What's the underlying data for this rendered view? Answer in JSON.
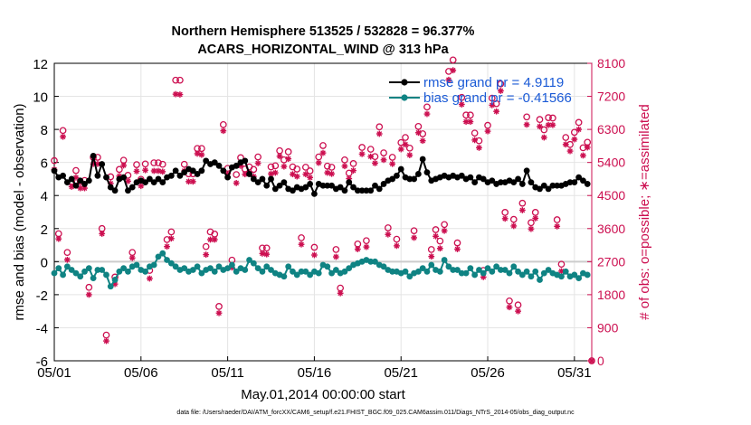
{
  "chart_data": {
    "type": "line",
    "title": "Northern Hemisphere 513525 / 532828 = 96.377%",
    "subtitle": "ACARS_HORIZONTAL_WIND @ 313 hPa",
    "xlabel": "May.01,2014 00:00:00 start",
    "ylabel": "rmse and bias (model - observation)",
    "y2label": "# of obs: o=possible; ∗=assimilated",
    "x_tick_labels": [
      "05/01",
      "05/06",
      "05/11",
      "05/16",
      "05/21",
      "05/26",
      "05/31"
    ],
    "x_ticks": [
      1,
      6,
      11,
      16,
      21,
      26,
      31
    ],
    "xlim": [
      1,
      32
    ],
    "ylim": [
      -6,
      12
    ],
    "y_ticks": [
      -6,
      -4,
      -2,
      0,
      2,
      4,
      6,
      8,
      10,
      12
    ],
    "y2lim": [
      0,
      8100
    ],
    "y2_ticks": [
      0,
      900,
      1800,
      2700,
      3600,
      4500,
      5400,
      6300,
      7200,
      8100
    ],
    "grid": true,
    "legend_position": "top-right",
    "legend": [
      "rmse grand pr = 4.9119",
      "bias grand pr = -0.41566"
    ],
    "colors": {
      "rmse": "#000000",
      "bias": "#0f8383",
      "obs": "#cc0f50",
      "legend_text": "#1a5ad6",
      "zero_line": "#cccccc"
    },
    "series": [
      {
        "name": "rmse grand pr = 4.9119",
        "axis": "left",
        "color": "#000000",
        "x": [
          1.0,
          1.25,
          1.5,
          1.75,
          2.0,
          2.25,
          2.5,
          2.75,
          3.0,
          3.25,
          3.5,
          3.75,
          4.0,
          4.25,
          4.5,
          4.75,
          5.0,
          5.25,
          5.5,
          5.75,
          6.0,
          6.25,
          6.5,
          6.75,
          7.0,
          7.25,
          7.5,
          7.75,
          8.0,
          8.25,
          8.5,
          8.75,
          9.0,
          9.25,
          9.5,
          9.75,
          10.0,
          10.25,
          10.5,
          10.75,
          11.0,
          11.25,
          11.5,
          11.75,
          12.0,
          12.25,
          12.5,
          12.75,
          13.0,
          13.25,
          13.5,
          13.75,
          14.0,
          14.25,
          14.5,
          14.75,
          15.0,
          15.25,
          15.5,
          15.75,
          16.0,
          16.25,
          16.5,
          16.75,
          17.0,
          17.25,
          17.5,
          17.75,
          18.0,
          18.25,
          18.5,
          18.75,
          19.0,
          19.25,
          19.5,
          19.75,
          20.0,
          20.25,
          20.5,
          20.75,
          21.0,
          21.25,
          21.5,
          21.75,
          22.0,
          22.25,
          22.5,
          22.75,
          23.0,
          23.25,
          23.5,
          23.75,
          24.0,
          24.25,
          24.5,
          24.75,
          25.0,
          25.25,
          25.5,
          25.75,
          26.0,
          26.25,
          26.5,
          26.75,
          27.0,
          27.25,
          27.5,
          27.75,
          28.0,
          28.25,
          28.5,
          28.75,
          29.0,
          29.25,
          29.5,
          29.75,
          30.0,
          30.25,
          30.5,
          30.75,
          31.0,
          31.25,
          31.5,
          31.75
        ],
        "values": [
          5.5,
          5.1,
          5.2,
          4.8,
          5.0,
          4.6,
          4.9,
          4.7,
          4.9,
          6.4,
          5.2,
          5.9,
          5.1,
          4.5,
          4.3,
          5.0,
          5.1,
          4.3,
          4.5,
          4.8,
          4.9,
          4.8,
          5.0,
          4.8,
          5.0,
          4.8,
          5.1,
          5.2,
          5.5,
          5.2,
          5.4,
          5.6,
          5.5,
          5.3,
          5.5,
          6.1,
          5.9,
          6.0,
          5.8,
          5.5,
          5.1,
          5.7,
          5.8,
          6.0,
          6.1,
          5.3,
          5.0,
          4.8,
          5.0,
          4.6,
          5.0,
          4.4,
          4.6,
          4.8,
          4.4,
          4.3,
          4.5,
          4.4,
          4.5,
          4.7,
          4.1,
          4.7,
          4.6,
          4.6,
          4.6,
          4.4,
          4.5,
          4.3,
          4.8,
          4.5,
          4.3,
          4.3,
          4.3,
          4.3,
          4.6,
          4.4,
          4.7,
          4.9,
          5.0,
          5.2,
          5.6,
          5.1,
          5.0,
          5.0,
          5.3,
          6.2,
          5.4,
          4.9,
          5.0,
          5.1,
          5.2,
          5.1,
          5.2,
          5.1,
          5.2,
          5.0,
          5.1,
          4.8,
          5.1,
          5.0,
          4.8,
          4.9,
          4.7,
          4.8,
          4.8,
          4.9,
          4.8,
          5.0,
          4.7,
          5.5,
          4.8,
          4.5,
          4.4,
          4.6,
          4.4,
          4.6,
          4.6,
          4.6,
          4.7,
          4.8,
          4.8,
          5.1,
          4.9,
          4.7
        ]
      },
      {
        "name": "bias grand pr = -0.41566",
        "axis": "left",
        "color": "#0f8383",
        "x": [
          1.0,
          1.25,
          1.5,
          1.75,
          2.0,
          2.25,
          2.5,
          2.75,
          3.0,
          3.25,
          3.5,
          3.75,
          4.0,
          4.25,
          4.5,
          4.75,
          5.0,
          5.25,
          5.5,
          5.75,
          6.0,
          6.25,
          6.5,
          6.75,
          7.0,
          7.25,
          7.5,
          7.75,
          8.0,
          8.25,
          8.5,
          8.75,
          9.0,
          9.25,
          9.5,
          9.75,
          10.0,
          10.25,
          10.5,
          10.75,
          11.0,
          11.25,
          11.5,
          11.75,
          12.0,
          12.25,
          12.5,
          12.75,
          13.0,
          13.25,
          13.5,
          13.75,
          14.0,
          14.25,
          14.5,
          14.75,
          15.0,
          15.25,
          15.5,
          15.75,
          16.0,
          16.25,
          16.5,
          16.75,
          17.0,
          17.25,
          17.5,
          17.75,
          18.0,
          18.25,
          18.5,
          18.75,
          19.0,
          19.25,
          19.5,
          19.75,
          20.0,
          20.25,
          20.5,
          20.75,
          21.0,
          21.25,
          21.5,
          21.75,
          22.0,
          22.25,
          22.5,
          22.75,
          23.0,
          23.25,
          23.5,
          23.75,
          24.0,
          24.25,
          24.5,
          24.75,
          25.0,
          25.25,
          25.5,
          25.75,
          26.0,
          26.25,
          26.5,
          26.75,
          27.0,
          27.25,
          27.5,
          27.75,
          28.0,
          28.25,
          28.5,
          28.75,
          29.0,
          29.25,
          29.5,
          29.75,
          30.0,
          30.25,
          30.5,
          30.75,
          31.0,
          31.25,
          31.5,
          31.75
        ],
        "values": [
          -0.7,
          -0.4,
          -0.8,
          -0.3,
          -0.5,
          -0.7,
          -0.9,
          -0.6,
          -0.4,
          -1.0,
          -0.5,
          -0.5,
          -0.8,
          -1.5,
          -1.1,
          -0.6,
          -0.4,
          -0.6,
          -0.3,
          -0.2,
          -0.5,
          -0.6,
          -0.3,
          -0.2,
          0.3,
          0.5,
          0.1,
          -0.1,
          -0.3,
          -0.5,
          -0.4,
          -0.6,
          -0.5,
          -0.3,
          -0.7,
          -0.5,
          -0.4,
          -0.6,
          -0.3,
          -0.5,
          -0.4,
          -0.2,
          -0.6,
          -0.4,
          -0.5,
          0.1,
          -0.1,
          -0.4,
          -0.6,
          -0.3,
          -0.5,
          -0.7,
          -0.8,
          -0.9,
          -0.3,
          -0.6,
          -0.8,
          -0.6,
          -0.6,
          -0.8,
          -0.6,
          -0.7,
          -0.2,
          -0.3,
          -0.7,
          -0.5,
          -0.7,
          -0.6,
          -0.4,
          -0.2,
          -0.1,
          0.0,
          0.1,
          0.0,
          0.0,
          -0.2,
          -0.3,
          -0.5,
          -0.6,
          -0.6,
          -0.7,
          -0.6,
          -0.9,
          -0.7,
          -0.6,
          -0.4,
          -0.6,
          -0.2,
          -0.5,
          -0.6,
          0.1,
          -0.3,
          -0.5,
          -0.5,
          -0.7,
          -0.7,
          -0.4,
          -0.8,
          -0.5,
          -0.7,
          -0.4,
          -0.6,
          -0.3,
          -0.5,
          -0.5,
          -0.7,
          -0.3,
          -0.6,
          -0.8,
          -0.6,
          -0.9,
          -0.6,
          -1.1,
          -0.7,
          -0.5,
          -0.7,
          -0.8,
          -0.9,
          -0.6,
          -0.9,
          -0.8,
          -1.0,
          -0.7,
          -0.8
        ]
      },
      {
        "name": "possible",
        "axis": "right",
        "marker": "o",
        "color": "#cc0f50",
        "x": [
          1.0,
          1.25,
          1.5,
          1.75,
          2.0,
          2.25,
          2.5,
          2.75,
          3.0,
          3.25,
          3.5,
          3.75,
          4.0,
          4.25,
          4.5,
          4.75,
          5.0,
          5.25,
          5.5,
          5.75,
          6.0,
          6.25,
          6.5,
          6.75,
          7.0,
          7.25,
          7.5,
          7.75,
          8.0,
          8.25,
          8.5,
          8.75,
          9.0,
          9.25,
          9.5,
          9.75,
          10.0,
          10.25,
          10.5,
          10.75,
          11.0,
          11.25,
          11.5,
          11.75,
          12.0,
          12.25,
          12.5,
          12.75,
          13.0,
          13.25,
          13.5,
          13.75,
          14.0,
          14.25,
          14.5,
          14.75,
          15.0,
          15.25,
          15.5,
          15.75,
          16.0,
          16.25,
          16.5,
          16.75,
          17.0,
          17.25,
          17.5,
          17.75,
          18.0,
          18.25,
          18.5,
          18.75,
          19.0,
          19.25,
          19.5,
          19.75,
          20.0,
          20.25,
          20.5,
          20.75,
          21.0,
          21.25,
          21.5,
          21.75,
          22.0,
          22.25,
          22.5,
          22.75,
          23.0,
          23.25,
          23.5,
          23.75,
          24.0,
          24.25,
          24.5,
          24.75,
          25.0,
          25.25,
          25.5,
          25.75,
          26.0,
          26.25,
          26.5,
          26.75,
          27.0,
          27.25,
          27.5,
          27.75,
          28.0,
          28.25,
          28.5,
          28.75,
          29.0,
          29.25,
          29.5,
          29.75,
          30.0,
          30.25,
          30.5,
          30.75,
          31.0,
          31.25,
          31.5,
          31.75,
          32.0
        ],
        "values": [
          5450,
          3460,
          6270,
          2950,
          4880,
          5180,
          4880,
          4910,
          2000,
          5540,
          5540,
          3600,
          700,
          5010,
          2280,
          5210,
          5460,
          5050,
          2950,
          5340,
          4940,
          5360,
          2460,
          5390,
          5390,
          5350,
          3300,
          3510,
          7640,
          7640,
          5350,
          5090,
          5090,
          5780,
          5780,
          3110,
          3510,
          3450,
          1480,
          6430,
          5240,
          2740,
          5070,
          5530,
          5220,
          5280,
          5210,
          5550,
          3070,
          3070,
          5280,
          5310,
          5720,
          5470,
          5690,
          5280,
          5220,
          3350,
          5270,
          5170,
          3090,
          5550,
          5860,
          5300,
          5270,
          3030,
          1980,
          5470,
          5110,
          5370,
          3180,
          5810,
          3270,
          5760,
          5560,
          6370,
          5660,
          3620,
          5540,
          3310,
          5940,
          6080,
          5790,
          3540,
          6380,
          6180,
          6910,
          3030,
          3570,
          3260,
          3710,
          7880,
          8190,
          3210,
          7170,
          6690,
          6690,
          6200,
          5990,
          2460,
          6410,
          7150,
          7000,
          7540,
          4040,
          1630,
          3850,
          1520,
          4290,
          6640,
          3760,
          4040,
          6570,
          6290,
          6620,
          6610,
          3840,
          2630,
          6080,
          5890,
          6220,
          6490,
          5800,
          5950,
          0
        ]
      },
      {
        "name": "assimilated",
        "axis": "right",
        "marker": "*",
        "color": "#cc0f50",
        "x": [
          1.0,
          1.25,
          1.5,
          1.75,
          2.0,
          2.25,
          2.5,
          2.75,
          3.0,
          3.25,
          3.5,
          3.75,
          4.0,
          4.25,
          4.5,
          4.75,
          5.0,
          5.25,
          5.5,
          5.75,
          6.0,
          6.25,
          6.5,
          6.75,
          7.0,
          7.25,
          7.5,
          7.75,
          8.0,
          8.25,
          8.5,
          8.75,
          9.0,
          9.25,
          9.5,
          9.75,
          10.0,
          10.25,
          10.5,
          10.75,
          11.0,
          11.25,
          11.5,
          11.75,
          12.0,
          12.25,
          12.5,
          12.75,
          13.0,
          13.25,
          13.5,
          13.75,
          14.0,
          14.25,
          14.5,
          14.75,
          15.0,
          15.25,
          15.5,
          15.75,
          16.0,
          16.25,
          16.5,
          16.75,
          17.0,
          17.25,
          17.5,
          17.75,
          18.0,
          18.25,
          18.5,
          18.75,
          19.0,
          19.25,
          19.5,
          19.75,
          20.0,
          20.25,
          20.5,
          20.75,
          21.0,
          21.25,
          21.5,
          21.75,
          22.0,
          22.25,
          22.5,
          22.75,
          23.0,
          23.25,
          23.5,
          23.75,
          24.0,
          24.25,
          24.5,
          24.75,
          25.0,
          25.25,
          25.5,
          25.75,
          26.0,
          26.25,
          26.5,
          26.75,
          27.0,
          27.25,
          27.5,
          27.75,
          28.0,
          28.25,
          28.5,
          28.75,
          29.0,
          29.25,
          29.5,
          29.75,
          30.0,
          30.25,
          30.5,
          30.75,
          31.0,
          31.25,
          31.5,
          31.75,
          32.0
        ],
        "values": [
          5210,
          3320,
          6100,
          2750,
          4740,
          4990,
          4700,
          4700,
          1800,
          5360,
          5360,
          3460,
          540,
          4830,
          2090,
          5030,
          5320,
          4890,
          2800,
          5160,
          4760,
          5190,
          2240,
          5170,
          5170,
          5150,
          3110,
          3330,
          7260,
          7250,
          5170,
          4880,
          4880,
          5640,
          5610,
          2890,
          3300,
          3300,
          1300,
          6260,
          5090,
          2540,
          4840,
          5310,
          5080,
          5110,
          5020,
          5380,
          2920,
          2900,
          5090,
          5120,
          5570,
          5290,
          5500,
          5080,
          5020,
          3170,
          5080,
          4990,
          2880,
          5390,
          5660,
          5120,
          5090,
          2830,
          1840,
          5300,
          4960,
          5180,
          3040,
          5630,
          3100,
          5560,
          5380,
          6180,
          5470,
          3440,
          5360,
          3130,
          5760,
          5890,
          5600,
          3350,
          6210,
          5990,
          6720,
          2840,
          3390,
          3060,
          3540,
          7650,
          7910,
          3040,
          6980,
          6510,
          6510,
          6010,
          5800,
          2280,
          6250,
          6960,
          6790,
          7350,
          3870,
          1460,
          3670,
          1350,
          4100,
          6430,
          3590,
          3880,
          6380,
          6080,
          6420,
          6420,
          3660,
          2440,
          5890,
          5710,
          6030,
          6300,
          5590,
          5810,
          0
        ]
      }
    ]
  },
  "footer_text": "data file: /Users/raeder/DAI/ATM_forcXX/CAM6_setup/f.e21.FHIST_BGC.f09_025.CAM6assim.011/Diags_NTrS_2014-05/obs_diag_output.nc"
}
